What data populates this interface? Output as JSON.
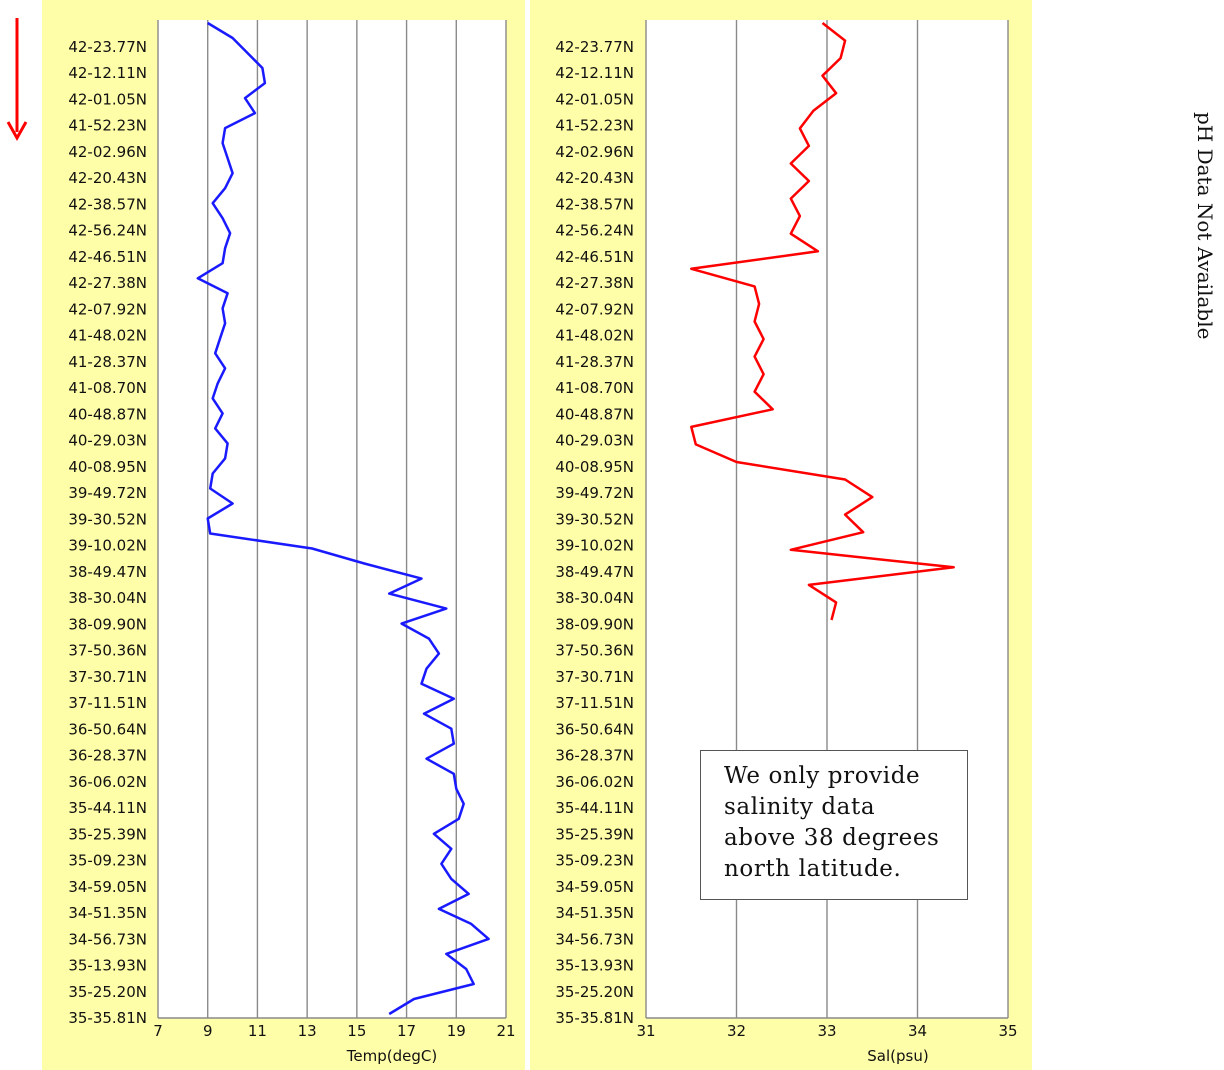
{
  "chart_data": [
    {
      "type": "line",
      "orientation": "vertical-profile",
      "xlabel": "Temp(degC)",
      "xlim": [
        7,
        21
      ],
      "xticks": [
        "7",
        "9",
        "11",
        "13",
        "15",
        "17",
        "19",
        "21"
      ],
      "ylabels": [
        "42-23.77N",
        "42-12.11N",
        "42-01.05N",
        "41-52.23N",
        "42-02.96N",
        "42-20.43N",
        "42-38.57N",
        "42-56.24N",
        "42-46.51N",
        "42-27.38N",
        "42-07.92N",
        "41-48.02N",
        "41-28.37N",
        "41-08.70N",
        "40-48.87N",
        "40-29.03N",
        "40-08.95N",
        "39-49.72N",
        "39-30.52N",
        "39-10.02N",
        "38-49.47N",
        "38-30.04N",
        "38-09.90N",
        "37-50.36N",
        "37-30.71N",
        "37-11.51N",
        "36-50.64N",
        "36-28.37N",
        "36-06.02N",
        "35-44.11N",
        "35-25.39N",
        "35-09.23N",
        "34-59.05N",
        "34-51.35N",
        "34-56.73N",
        "35-13.93N",
        "35-25.20N",
        "35-35.81N"
      ],
      "color": "#1a1aff",
      "grid": "vertical",
      "values": [
        9.0,
        10.0,
        10.6,
        11.2,
        11.3,
        10.5,
        10.9,
        9.7,
        9.6,
        9.8,
        10.0,
        9.7,
        9.2,
        9.6,
        9.9,
        9.7,
        9.6,
        8.6,
        9.8,
        9.6,
        9.7,
        9.5,
        9.3,
        9.7,
        9.4,
        9.2,
        9.6,
        9.3,
        9.8,
        9.7,
        9.2,
        9.1,
        10.0,
        9.0,
        9.1,
        13.2,
        15.3,
        17.6,
        16.3,
        18.6,
        16.8,
        17.9,
        18.3,
        17.8,
        17.6,
        18.9,
        17.7,
        18.8,
        18.9,
        17.8,
        18.9,
        19.0,
        19.3,
        19.1,
        18.1,
        18.8,
        18.4,
        18.8,
        19.5,
        18.3,
        19.6,
        20.3,
        18.6,
        19.4,
        19.7,
        17.3,
        16.3
      ]
    },
    {
      "type": "line",
      "orientation": "vertical-profile",
      "xlabel": "Sal(psu)",
      "xlim": [
        31,
        35
      ],
      "xticks": [
        "31",
        "32",
        "33",
        "34",
        "35"
      ],
      "ylabels": [
        "42-23.77N",
        "42-12.11N",
        "42-01.05N",
        "41-52.23N",
        "42-02.96N",
        "42-20.43N",
        "42-38.57N",
        "42-56.24N",
        "42-46.51N",
        "42-27.38N",
        "42-07.92N",
        "41-48.02N",
        "41-28.37N",
        "41-08.70N",
        "40-48.87N",
        "40-29.03N",
        "40-08.95N",
        "39-49.72N",
        "39-30.52N",
        "39-10.02N",
        "38-49.47N",
        "38-30.04N",
        "38-09.90N",
        "37-50.36N",
        "37-30.71N",
        "37-11.51N",
        "36-50.64N",
        "36-28.37N",
        "36-06.02N",
        "35-44.11N",
        "35-25.39N",
        "35-09.23N",
        "34-59.05N",
        "34-51.35N",
        "34-56.73N",
        "35-13.93N",
        "35-25.20N",
        "35-35.81N"
      ],
      "color": "#ff0000",
      "grid": "vertical",
      "values": [
        32.95,
        33.2,
        33.15,
        32.95,
        33.1,
        32.85,
        32.7,
        32.8,
        32.6,
        32.8,
        32.6,
        32.7,
        32.6,
        32.9,
        31.5,
        32.2,
        32.25,
        32.2,
        32.3,
        32.2,
        32.3,
        32.2,
        32.4,
        31.5,
        31.55,
        32.0,
        33.2,
        33.5,
        33.2,
        33.4,
        32.6,
        34.4,
        32.8,
        33.1,
        33.05
      ]
    }
  ],
  "note": [
    "We only provide",
    "salinity data",
    "above 38 degrees",
    "north latitude."
  ],
  "ph_label": "pH Data Not Available"
}
